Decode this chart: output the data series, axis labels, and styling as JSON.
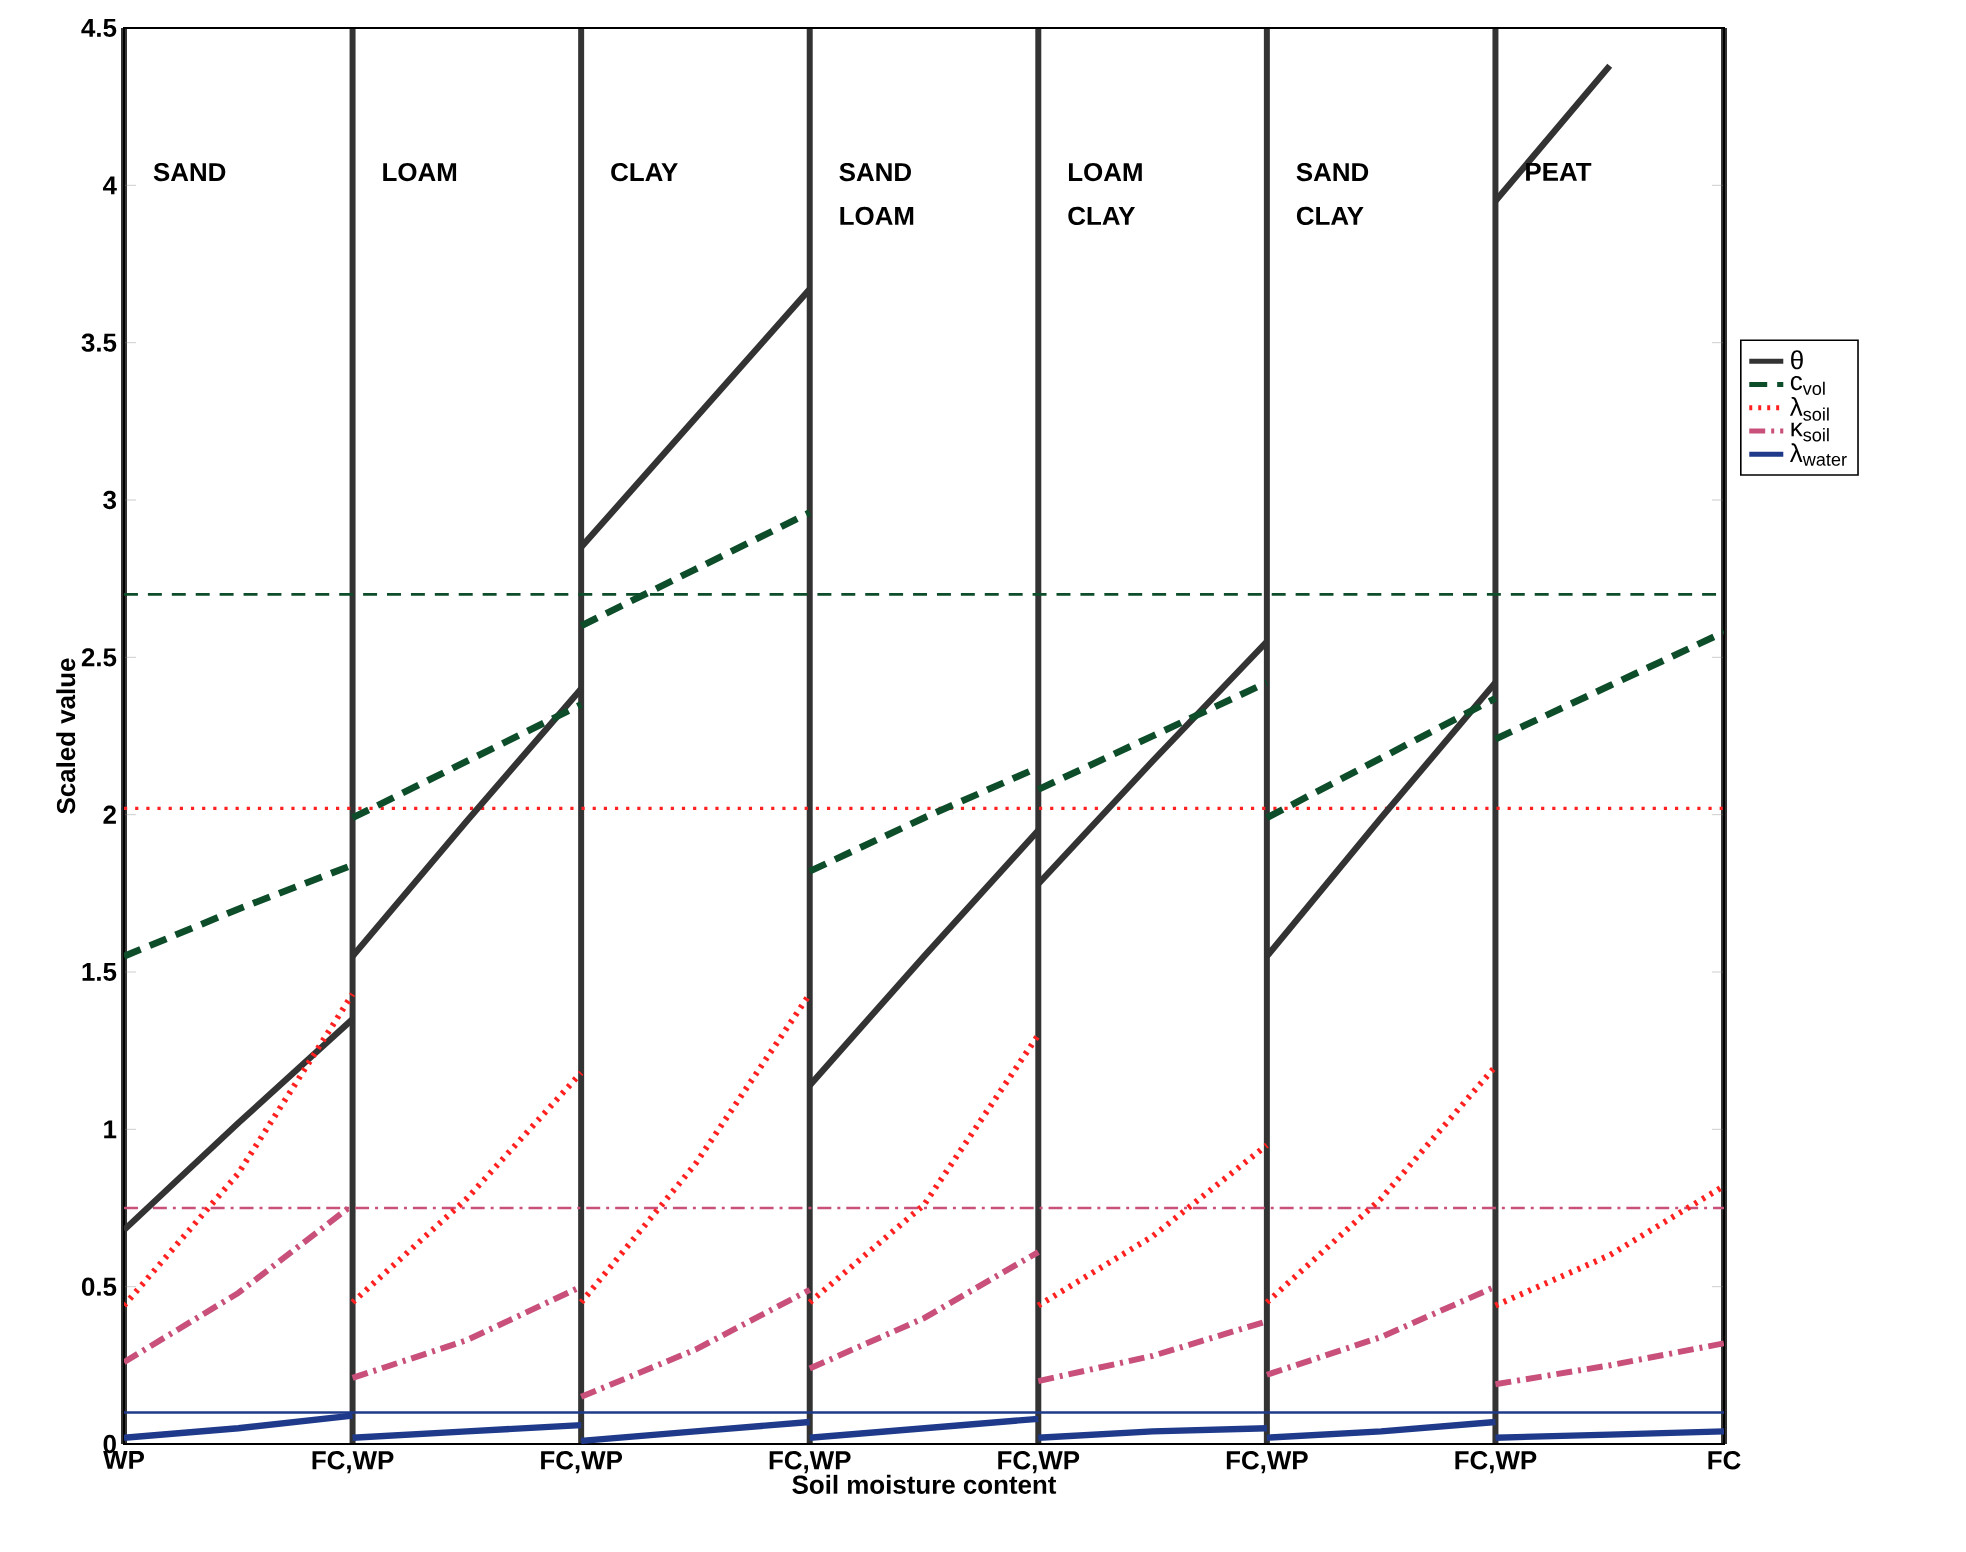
{
  "chart_data": {
    "type": "line",
    "xlabel": "Soil moisture content",
    "ylabel": "Scaled value",
    "categories": [
      "WP",
      null,
      "FC,WP",
      null,
      "FC,WP",
      null,
      "FC,WP",
      null,
      "FC,WP",
      null,
      "FC,WP",
      null,
      "FC,WP",
      null,
      "FC"
    ],
    "ylim": [
      0,
      4.5
    ],
    "yticks": [
      0,
      0.5,
      1,
      1.5,
      2,
      2.5,
      3,
      3.5,
      4,
      4.5
    ],
    "grid": "x",
    "legend": "right",
    "annotations": [
      "SAND",
      "LOAM",
      "CLAY",
      "SAND LOAM",
      "LOAM CLAY",
      "SAND CLAY",
      "PEAT"
    ],
    "ref_lines": [
      {
        "axis": "y",
        "value": 2.7,
        "color": "#0d4d2a",
        "line_style": "dashed"
      },
      {
        "axis": "y",
        "value": 2.02,
        "color": "#ff2020",
        "line_style": "dotted"
      },
      {
        "axis": "y",
        "value": 0.75,
        "color": "#c8507a",
        "line_style": "dashdot"
      },
      {
        "axis": "y",
        "value": 0.1,
        "color": "#1f3a8a",
        "line_style": "solid"
      }
    ],
    "series": [
      {
        "name": "θ",
        "color": "#333333",
        "line_style": "solid",
        "values": [
          0.68,
          1.02,
          1.35,
          null,
          2.85,
          3.26,
          3.67,
          null,
          1.78,
          2.17,
          2.55,
          null,
          3.95,
          4.38,
          null
        ]
      },
      {
        "name": "c$_{vol}$",
        "color": "#0d4d2a",
        "line_style": "dashed",
        "values": [
          1.55,
          1.7,
          1.84,
          null,
          2.6,
          2.78,
          2.96,
          null,
          2.08,
          2.25,
          2.42,
          null,
          2.24,
          2.41,
          2.58
        ]
      },
      {
        "name": "λ$_{soil}$",
        "color": "#ff2020",
        "line_style": "dotted",
        "values": [
          0.44,
          0.86,
          1.43,
          null,
          0.45,
          0.89,
          1.43,
          null,
          0.44,
          0.66,
          0.95,
          null,
          0.44,
          0.6,
          0.82
        ]
      },
      {
        "name": "κ$_{soil}$",
        "color": "#c8507a",
        "line_style": "dashdot",
        "values": [
          0.26,
          0.48,
          0.76,
          null,
          0.15,
          0.3,
          0.49,
          null,
          0.2,
          0.28,
          0.39,
          null,
          0.19,
          0.25,
          0.32
        ]
      },
      {
        "name": "λ$_{water}$",
        "color": "#1f3a8a",
        "line_style": "solid",
        "values": [
          0.02,
          0.05,
          0.09,
          null,
          0.01,
          0.04,
          0.07,
          null,
          0.02,
          0.04,
          0.05,
          null,
          0.02,
          0.03,
          0.04
        ]
      },
      {
        "color": "#333333",
        "line_style": "solid",
        "values": [
          null,
          null,
          1.55,
          1.98,
          2.4,
          null,
          1.14,
          1.55,
          1.95,
          null,
          1.55,
          1.99,
          2.42,
          null,
          null
        ]
      },
      {
        "color": "#0d4d2a",
        "line_style": "dashed",
        "values": [
          null,
          null,
          1.99,
          2.17,
          2.35,
          null,
          1.82,
          1.99,
          2.15,
          null,
          1.99,
          2.18,
          2.37,
          null,
          null
        ]
      },
      {
        "color": "#ff2020",
        "line_style": "dotted",
        "values": [
          null,
          null,
          0.45,
          0.78,
          1.18,
          null,
          0.45,
          0.76,
          1.3,
          null,
          0.45,
          0.78,
          1.2,
          null,
          null
        ]
      },
      {
        "color": "#c8507a",
        "line_style": "dashdot",
        "values": [
          null,
          null,
          0.21,
          0.33,
          0.5,
          null,
          0.24,
          0.4,
          0.61,
          null,
          0.22,
          0.34,
          0.5,
          null,
          null
        ]
      },
      {
        "color": "#1f3a8a",
        "line_style": "solid",
        "values": [
          null,
          null,
          0.02,
          0.04,
          0.06,
          null,
          0.02,
          0.05,
          0.08,
          null,
          0.02,
          0.04,
          0.07,
          null,
          null
        ]
      }
    ]
  }
}
